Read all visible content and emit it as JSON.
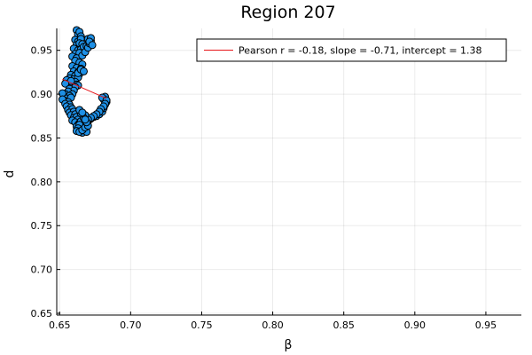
{
  "chart_data": {
    "type": "scatter",
    "title": "Region 207",
    "xlabel": "β",
    "ylabel": "d",
    "xlim": [
      0.648,
      0.975
    ],
    "ylim": [
      0.648,
      0.975
    ],
    "xticks": [
      "0.65",
      "0.70",
      "0.75",
      "0.80",
      "0.85",
      "0.90",
      "0.95"
    ],
    "yticks": [
      "0.65",
      "0.70",
      "0.75",
      "0.80",
      "0.85",
      "0.90",
      "0.95"
    ],
    "grid": true,
    "legend": {
      "placement": "top-right",
      "entries": [
        {
          "label": "Pearson r = -0.18, slope = -0.71, intercept = 1.38",
          "color": "#e6151a",
          "kind": "line"
        }
      ]
    },
    "fit_line": {
      "slope": -0.71,
      "intercept": 1.38,
      "x_range": [
        0.652,
        0.683
      ],
      "color": "#e6151a"
    },
    "series": [
      {
        "color": "#1e90e6",
        "edge_color": "#000000",
        "x": [
          0.662,
          0.663,
          0.664,
          0.665,
          0.661,
          0.663,
          0.665,
          0.662,
          0.664,
          0.666,
          0.66,
          0.663,
          0.665,
          0.667,
          0.661,
          0.664,
          0.659,
          0.662,
          0.666,
          0.668,
          0.669,
          0.67,
          0.671,
          0.672,
          0.67,
          0.672,
          0.671,
          0.673,
          0.661,
          0.664,
          0.666,
          0.659,
          0.662,
          0.665,
          0.66,
          0.663,
          0.666,
          0.658,
          0.661,
          0.664,
          0.657,
          0.66,
          0.663,
          0.658,
          0.661,
          0.662,
          0.659,
          0.663,
          0.655,
          0.658,
          0.661,
          0.654,
          0.657,
          0.66,
          0.656,
          0.659,
          0.654,
          0.657,
          0.652,
          0.655,
          0.658,
          0.653,
          0.656,
          0.652,
          0.654,
          0.657,
          0.655,
          0.658,
          0.656,
          0.659,
          0.657,
          0.66,
          0.658,
          0.661,
          0.66,
          0.662,
          0.659,
          0.663,
          0.661,
          0.664,
          0.663,
          0.666,
          0.662,
          0.665,
          0.664,
          0.667,
          0.665,
          0.668,
          0.666,
          0.669,
          0.67,
          0.672,
          0.674,
          0.676,
          0.678,
          0.68,
          0.681,
          0.682,
          0.683,
          0.681,
          0.682,
          0.68,
          0.683,
          0.682,
          0.681,
          0.679,
          0.678,
          0.676,
          0.674,
          0.672,
          0.67,
          0.668,
          0.667,
          0.665,
          0.664,
          0.663,
          0.662,
          0.664,
          0.666,
          0.668,
          0.67,
          0.669,
          0.667,
          0.665,
          0.664,
          0.666,
          0.668,
          0.663,
          0.665,
          0.667
        ],
        "y": [
          0.973,
          0.968,
          0.971,
          0.966,
          0.962,
          0.96,
          0.963,
          0.956,
          0.958,
          0.957,
          0.952,
          0.95,
          0.951,
          0.954,
          0.946,
          0.947,
          0.943,
          0.941,
          0.944,
          0.948,
          0.955,
          0.953,
          0.958,
          0.961,
          0.963,
          0.964,
          0.96,
          0.956,
          0.938,
          0.936,
          0.934,
          0.932,
          0.93,
          0.929,
          0.926,
          0.925,
          0.927,
          0.922,
          0.921,
          0.923,
          0.918,
          0.917,
          0.919,
          0.913,
          0.914,
          0.911,
          0.909,
          0.91,
          0.916,
          0.915,
          0.908,
          0.912,
          0.906,
          0.904,
          0.903,
          0.9,
          0.9,
          0.898,
          0.901,
          0.895,
          0.896,
          0.893,
          0.891,
          0.894,
          0.889,
          0.888,
          0.886,
          0.885,
          0.882,
          0.883,
          0.879,
          0.88,
          0.876,
          0.877,
          0.873,
          0.874,
          0.87,
          0.871,
          0.868,
          0.867,
          0.865,
          0.866,
          0.863,
          0.861,
          0.86,
          0.862,
          0.858,
          0.859,
          0.856,
          0.857,
          0.869,
          0.872,
          0.874,
          0.875,
          0.877,
          0.88,
          0.884,
          0.888,
          0.891,
          0.894,
          0.897,
          0.896,
          0.893,
          0.889,
          0.886,
          0.883,
          0.88,
          0.877,
          0.875,
          0.873,
          0.871,
          0.876,
          0.872,
          0.869,
          0.865,
          0.861,
          0.858,
          0.857,
          0.859,
          0.862,
          0.864,
          0.868,
          0.873,
          0.878,
          0.882,
          0.879,
          0.871,
          0.924,
          0.928,
          0.926
        ]
      }
    ]
  }
}
